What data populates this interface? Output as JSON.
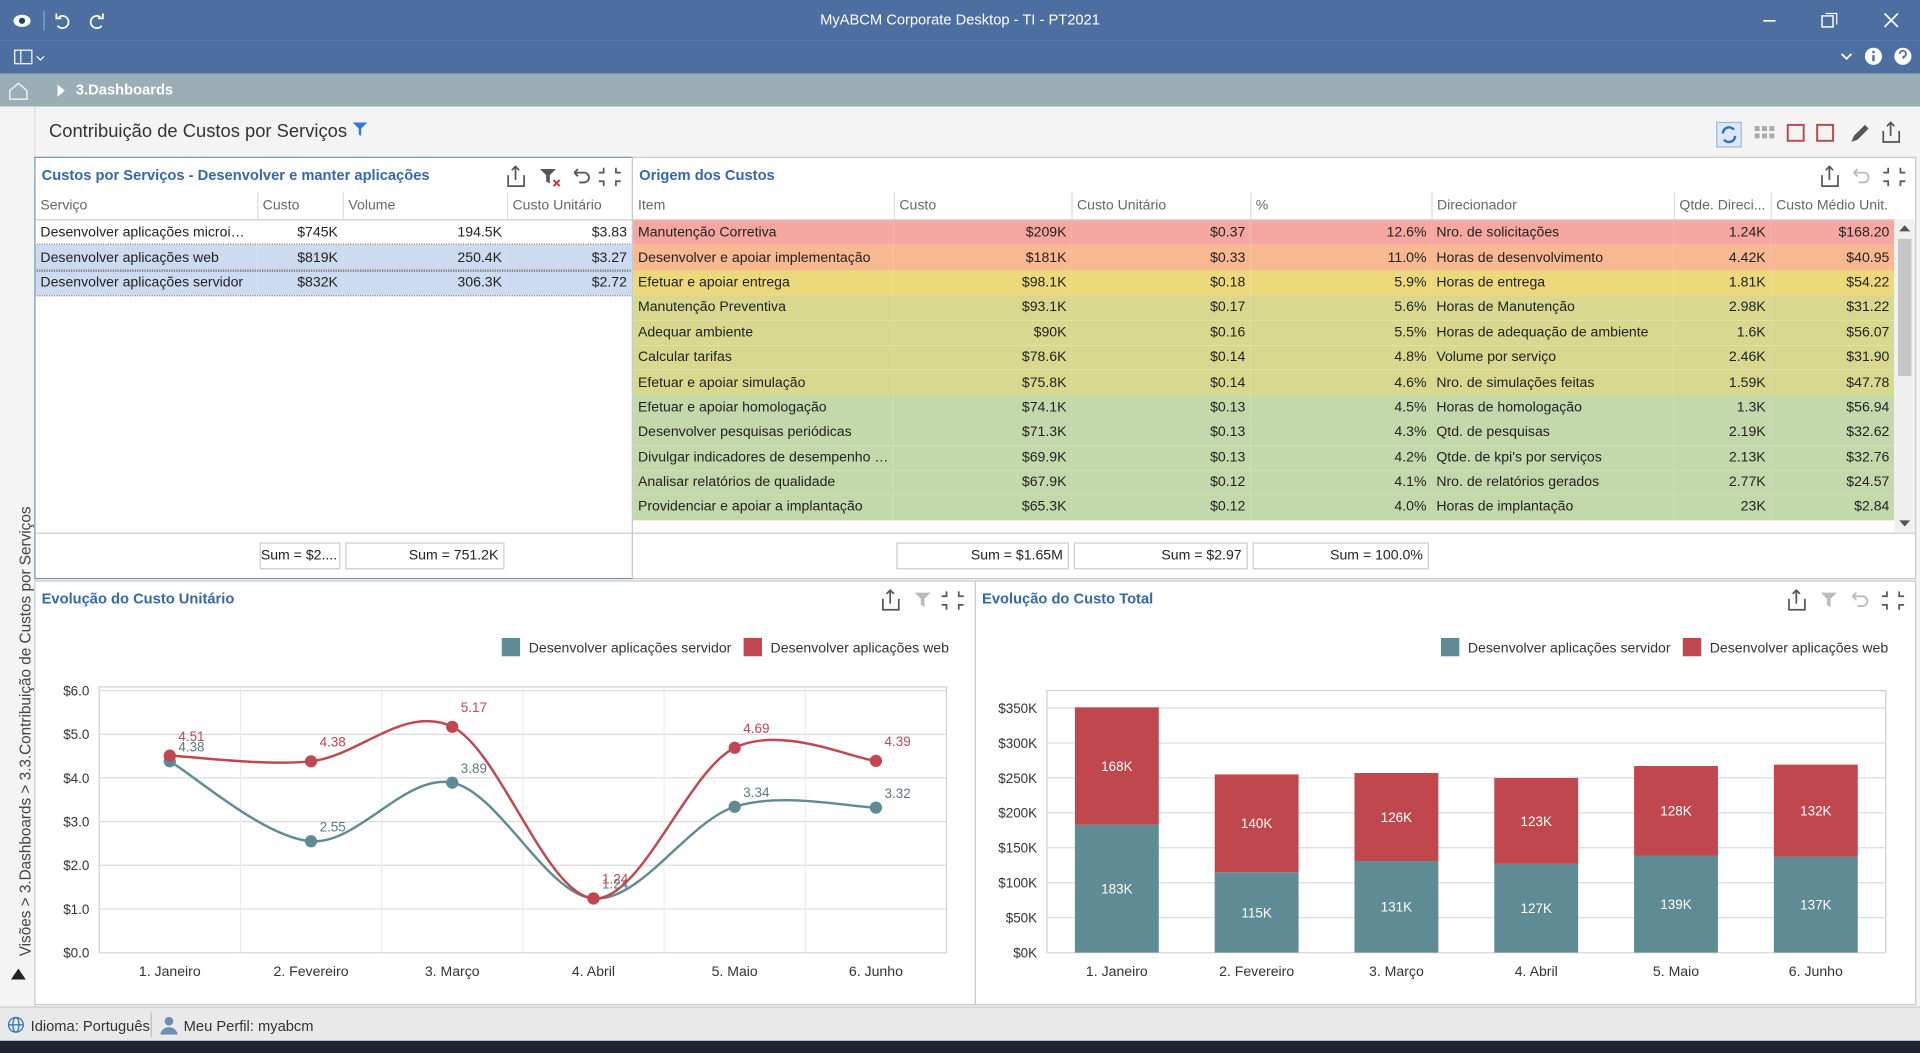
{
  "window": {
    "title": "MyABCM Corporate Desktop - TI - PT2021"
  },
  "breadcrumb": "3.Dashboards",
  "side_path": "Visões > 3.Dashboards > 3.3.Contribuição de Custos por Serviços",
  "dashboard_title": "Contribuição de Custos por Serviços",
  "services_table": {
    "title": "Custos por Serviços - Desenvolver e manter aplicações",
    "columns": [
      "Serviço",
      "Custo",
      "Volume",
      "Custo Unitário"
    ],
    "rows": [
      {
        "cells": [
          "Desenvolver aplicações microinfo...",
          "$745K",
          "194.5K",
          "$3.83"
        ],
        "selected": false
      },
      {
        "cells": [
          "Desenvolver aplicações web",
          "$819K",
          "250.4K",
          "$3.27"
        ],
        "selected": true
      },
      {
        "cells": [
          "Desenvolver aplicações servidor",
          "$832K",
          "306.3K",
          "$2.72"
        ],
        "selected": true
      }
    ],
    "footer": [
      null,
      "Sum = $2....",
      "Sum = 751.2K",
      null
    ]
  },
  "cost_origin_table": {
    "title": "Origem dos Custos",
    "columns": [
      "Item",
      "Custo",
      "Custo Unitário",
      "%",
      "Direcionador",
      "Qtde. Direci...",
      "Custo Médio Unit."
    ],
    "rows": [
      {
        "cells": [
          "Manutenção Corretiva",
          "$209K",
          "$0.37",
          "12.6%",
          "Nro. de solicitações",
          "1.24K",
          "$168.20"
        ],
        "color": "#f7a7a1"
      },
      {
        "cells": [
          "Desenvolver e apoiar implementação",
          "$181K",
          "$0.33",
          "11.0%",
          "Horas de desenvolvimento",
          "4.42K",
          "$40.95"
        ],
        "color": "#f8b991"
      },
      {
        "cells": [
          "Efetuar e apoiar entrega",
          "$98.1K",
          "$0.18",
          "5.9%",
          "Horas de entrega",
          "1.81K",
          "$54.22"
        ],
        "color": "#ecd97c"
      },
      {
        "cells": [
          "Manutenção Preventiva",
          "$93.1K",
          "$0.17",
          "5.6%",
          "Horas de Manutenção",
          "2.98K",
          "$31.22"
        ],
        "color": "#d8d98e"
      },
      {
        "cells": [
          "Adequar ambiente",
          "$90K",
          "$0.16",
          "5.5%",
          "Horas de adequação de ambiente",
          "1.6K",
          "$56.07"
        ],
        "color": "#d8d98e"
      },
      {
        "cells": [
          "Calcular tarifas",
          "$78.6K",
          "$0.14",
          "4.8%",
          "Volume por serviço",
          "2.46K",
          "$31.90"
        ],
        "color": "#d8d98e"
      },
      {
        "cells": [
          "Efetuar e apoiar simulação",
          "$75.8K",
          "$0.14",
          "4.6%",
          "Nro. de simulações feitas",
          "1.59K",
          "$47.78"
        ],
        "color": "#d8d98e"
      },
      {
        "cells": [
          "Efetuar e apoiar homologação",
          "$74.1K",
          "$0.13",
          "4.5%",
          "Horas de homologação",
          "1.3K",
          "$56.94"
        ],
        "color": "#c4d9ab"
      },
      {
        "cells": [
          "Desenvolver pesquisas periódicas",
          "$71.3K",
          "$0.13",
          "4.3%",
          "Qtd. de pesquisas",
          "2.19K",
          "$32.62"
        ],
        "color": "#c4d9ab"
      },
      {
        "cells": [
          "Divulgar indicadores de desempenho de...",
          "$69.9K",
          "$0.13",
          "4.2%",
          "Qtde. de kpi's por serviços",
          "2.13K",
          "$32.76"
        ],
        "color": "#c4d9ab"
      },
      {
        "cells": [
          "Analisar relatórios de qualidade",
          "$67.9K",
          "$0.12",
          "4.1%",
          "Nro. de relatórios gerados",
          "2.77K",
          "$24.57"
        ],
        "color": "#c4d9ab"
      },
      {
        "cells": [
          "Providenciar e apoiar a implantação",
          "$65.3K",
          "$0.12",
          "4.0%",
          "Horas de implantação",
          "23K",
          "$2.84"
        ],
        "color": "#c4d9ab"
      }
    ],
    "footer": [
      null,
      "Sum = $1.65M",
      "Sum = $2.97",
      "Sum = 100.0%",
      null,
      null,
      null
    ]
  },
  "chart_data": [
    {
      "type": "line",
      "title": "Evolução do Custo Unitário",
      "categories": [
        "1. Janeiro",
        "2. Fevereiro",
        "3. Março",
        "4. Abril",
        "5. Maio",
        "6. Junho"
      ],
      "series": [
        {
          "name": "Desenvolver aplicações servidor",
          "color": "#5e8b94",
          "values": [
            4.38,
            2.55,
            3.89,
            1.24,
            3.34,
            3.32
          ]
        },
        {
          "name": "Desenvolver aplicações web",
          "color": "#c0474e",
          "values": [
            4.51,
            4.38,
            5.17,
            1.24,
            4.69,
            4.39
          ]
        }
      ],
      "ylim": [
        0,
        6
      ],
      "yticks": [
        {
          "value": 0,
          "label": "$0.0"
        },
        {
          "value": 1,
          "label": "$1.0"
        },
        {
          "value": 2,
          "label": "$2.0"
        },
        {
          "value": 3,
          "label": "$3.0"
        },
        {
          "value": 4,
          "label": "$4.0"
        },
        {
          "value": 5,
          "label": "$5.0"
        },
        {
          "value": 6,
          "label": "$6.0"
        }
      ],
      "grid": true,
      "legend": "top-right"
    },
    {
      "type": "stacked-bar",
      "title": "Evolução do Custo Total",
      "categories": [
        "1. Janeiro",
        "2. Fevereiro",
        "3. Março",
        "4. Abril",
        "5. Maio",
        "6. Junho"
      ],
      "series": [
        {
          "name": "Desenvolver aplicações servidor",
          "color": "#5e8b94",
          "values": [
            183,
            115,
            131,
            127,
            139,
            137
          ],
          "value_labels": [
            "183K",
            "115K",
            "131K",
            "127K",
            "139K",
            "137K"
          ]
        },
        {
          "name": "Desenvolver aplicações web",
          "color": "#c0474e",
          "values": [
            168,
            140,
            126,
            123,
            128,
            132
          ],
          "value_labels": [
            "168K",
            "140K",
            "126K",
            "123K",
            "128K",
            "132K"
          ]
        }
      ],
      "ylim": [
        0,
        375
      ],
      "yticks": [
        {
          "value": 0,
          "label": "$0K"
        },
        {
          "value": 50,
          "label": "$50K"
        },
        {
          "value": 100,
          "label": "$100K"
        },
        {
          "value": 150,
          "label": "$150K"
        },
        {
          "value": 200,
          "label": "$200K"
        },
        {
          "value": 250,
          "label": "$250K"
        },
        {
          "value": 300,
          "label": "$300K"
        },
        {
          "value": 350,
          "label": "$350K"
        }
      ],
      "grid": true,
      "legend": "top-right"
    }
  ],
  "status_bar": {
    "language": "Idioma: Português",
    "profile": "Meu Perfil: myabcm"
  }
}
